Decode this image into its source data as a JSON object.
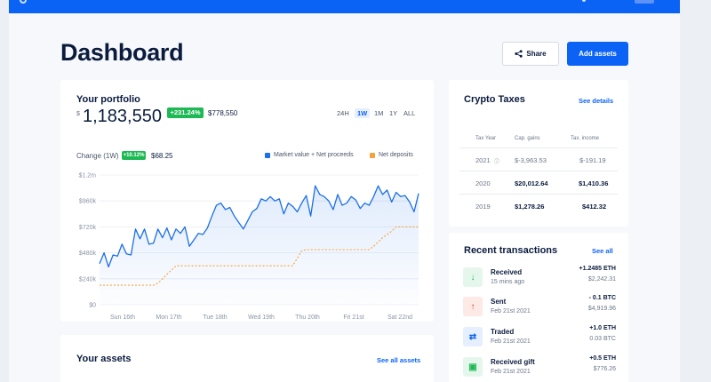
{
  "header": {
    "title": "Dashboard",
    "share_label": "Share",
    "add_assets_label": "Add assets"
  },
  "portfolio": {
    "title": "Your portfolio",
    "currency_symbol": "$",
    "balance": "1,183,550",
    "gain_percent": "+231.24%",
    "gain_amount": "$778,550",
    "ranges": [
      "24H",
      "1W",
      "1M",
      "1Y",
      "ALL"
    ],
    "active_range": "1W",
    "change_label": "Change (1W)",
    "change_percent": "+10.12%",
    "change_amount": "$68.25",
    "legend": [
      {
        "label": "Market value + Net proceeds",
        "color": "#1c6fe8"
      },
      {
        "label": "Net deposits",
        "color": "#f5a23b"
      }
    ]
  },
  "chart_data": {
    "type": "line",
    "title": "",
    "xlabel": "",
    "ylabel": "",
    "x_ticks": [
      "Sun 16th",
      "Mon 17th",
      "Tue 18th",
      "Wed 19th",
      "Thu 20th",
      "Fri 21st",
      "Sat 22nd"
    ],
    "y_ticks": [
      "$0",
      "$240k",
      "$480k",
      "$720k",
      "$960k",
      "$1.2m"
    ],
    "ylim": [
      0,
      1200000
    ],
    "grid": true,
    "legend_position": "top-right",
    "series": [
      {
        "name": "Market value + Net proceeds",
        "color": "#1c6fe8",
        "values": [
          380000,
          480000,
          350000,
          460000,
          450000,
          560000,
          470000,
          460000,
          700000,
          610000,
          700000,
          560000,
          570000,
          700000,
          620000,
          710000,
          600000,
          700000,
          660000,
          720000,
          540000,
          600000,
          660000,
          650000,
          710000,
          820000,
          920000,
          940000,
          880000,
          900000,
          820000,
          760000,
          700000,
          780000,
          860000,
          890000,
          980000,
          960000,
          1000000,
          960000,
          980000,
          840000,
          940000,
          910000,
          860000,
          940000,
          1010000,
          820000,
          1100000,
          1020000,
          1000000,
          960000,
          880000,
          1020000,
          920000,
          940000,
          1000000,
          970000,
          890000,
          940000,
          920000,
          1000000,
          1100000,
          1020000,
          1060000,
          950000,
          1040000,
          1000000,
          1010000,
          950000,
          860000,
          1030000
        ]
      },
      {
        "name": "Net deposits",
        "color": "#f5a23b",
        "values": [
          180000,
          180000,
          180000,
          180000,
          180000,
          180000,
          180000,
          180000,
          180000,
          180000,
          180000,
          180000,
          180000,
          200000,
          240000,
          280000,
          320000,
          360000,
          360000,
          360000,
          360000,
          360000,
          360000,
          360000,
          360000,
          360000,
          360000,
          360000,
          360000,
          360000,
          360000,
          360000,
          360000,
          360000,
          360000,
          360000,
          360000,
          360000,
          360000,
          360000,
          360000,
          360000,
          360000,
          360000,
          430000,
          500000,
          510000,
          510000,
          510000,
          510000,
          510000,
          510000,
          510000,
          510000,
          510000,
          510000,
          510000,
          510000,
          510000,
          510000,
          510000,
          540000,
          580000,
          620000,
          650000,
          680000,
          720000,
          720000,
          720000,
          720000,
          720000,
          720000
        ]
      }
    ]
  },
  "taxes": {
    "title": "Crypto Taxes",
    "see_details": "See details",
    "columns": [
      "Tax Year",
      "Cap. gains",
      "Tax. income"
    ],
    "rows": [
      {
        "year": "2021",
        "gains": "$-3,963.53",
        "income": "$-191.19",
        "muted": true
      },
      {
        "year": "2020",
        "gains": "$20,012.64",
        "income": "$1,410.36",
        "muted": false
      },
      {
        "year": "2019",
        "gains": "$1,278.26",
        "income": "$412.32",
        "muted": false
      }
    ]
  },
  "transactions": {
    "title": "Recent transactions",
    "see_all": "See all",
    "items": [
      {
        "type": "Received",
        "time": "15 mins ago",
        "amount": "+1.2485 ETH",
        "usd": "$2,242.31",
        "icon": "arrow-down-icon",
        "glyph": "↓",
        "fg": "#1db954",
        "bg": "#e5f7ec"
      },
      {
        "type": "Sent",
        "time": "Feb 21st 2021",
        "amount": "- 0.1 BTC",
        "usd": "$4,919.96",
        "icon": "arrow-up-icon",
        "glyph": "↑",
        "fg": "#e8452c",
        "bg": "#fde9e6"
      },
      {
        "type": "Traded",
        "time": "Feb 21st 2021",
        "amount": "+1.0 ETH",
        "usd": "0.03 BTC",
        "icon": "swap-icon",
        "glyph": "⇄",
        "fg": "#0b63f6",
        "bg": "#e6efff"
      },
      {
        "type": "Received gift",
        "time": "Feb 21st 2021",
        "amount": "+0.5 ETH",
        "usd": "$776.26",
        "icon": "gift-icon",
        "glyph": "▣",
        "fg": "#1db954",
        "bg": "#e5f7ec"
      }
    ]
  },
  "assets": {
    "title": "Your assets",
    "see_all": "See all assets"
  }
}
